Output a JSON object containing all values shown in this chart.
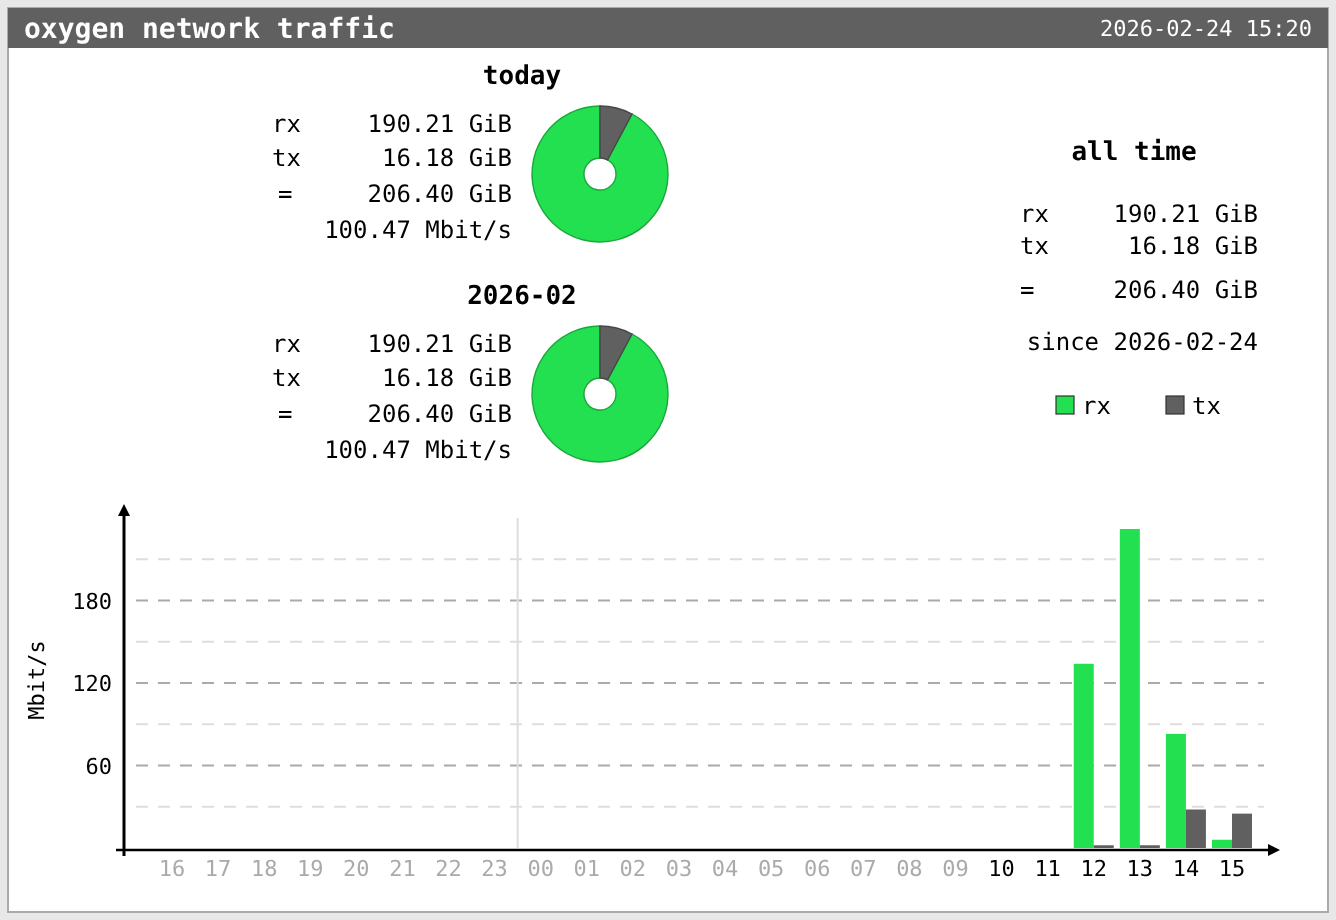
{
  "chart_data": [
    {
      "type": "other",
      "title": "oxygen network traffic",
      "annotations": [
        "2026-02-24 15:20"
      ]
    },
    {
      "type": "donut",
      "title": "today",
      "categories": [
        null,
        null
      ],
      "values": [
        92.2,
        7.8
      ],
      "colors": [
        "#22e04f",
        "#606060"
      ],
      "annotations": [
        "rx",
        "190.21 GiB",
        "tx",
        "16.18 GiB",
        "=",
        "206.40 GiB",
        "100.47 Mbit/s"
      ]
    },
    {
      "type": "donut",
      "title": "2026-02",
      "categories": [
        null,
        null
      ],
      "values": [
        92.2,
        7.8
      ],
      "colors": [
        "#22e04f",
        "#606060"
      ],
      "annotations": [
        "rx",
        "190.21 GiB",
        "tx",
        "16.18 GiB",
        "=",
        "206.40 GiB",
        "100.47 Mbit/s"
      ]
    },
    {
      "type": "other",
      "title": "all time",
      "annotations": [
        "rx",
        "190.21 GiB",
        "tx",
        "16.18 GiB",
        "=",
        "206.40 GiB",
        "since 2026-02-24"
      ]
    },
    {
      "type": "bar",
      "ylabel": "Mbit/s",
      "categories": [
        "16",
        "17",
        "18",
        "19",
        "20",
        "21",
        "22",
        "23",
        "00",
        "01",
        "02",
        "03",
        "04",
        "05",
        "06",
        "07",
        "08",
        "09",
        "10",
        "11",
        "12",
        "13",
        "14",
        "15"
      ],
      "series": [
        {
          "name": "rx",
          "color": "#22e04f",
          "values": [
            null,
            null,
            null,
            null,
            null,
            null,
            null,
            null,
            null,
            null,
            null,
            null,
            null,
            null,
            null,
            null,
            null,
            null,
            0,
            0,
            134,
            232,
            83,
            6
          ]
        },
        {
          "name": "tx",
          "color": "#606060",
          "values": [
            null,
            null,
            null,
            null,
            null,
            null,
            null,
            null,
            null,
            null,
            null,
            null,
            null,
            null,
            null,
            null,
            null,
            null,
            0,
            0,
            2,
            2,
            28,
            25
          ]
        }
      ],
      "ylim": [
        0,
        240
      ],
      "yticks": [
        {
          "value": 30,
          "label": null
        },
        60,
        {
          "value": 90,
          "label": null
        },
        120,
        {
          "value": 150,
          "label": null
        },
        180,
        {
          "value": 210,
          "label": null
        }
      ],
      "grid": "y",
      "legend": "top right",
      "ref_lines": [
        {
          "axis": "x",
          "value": "00",
          "color": "#dddddd"
        }
      ]
    }
  ]
}
